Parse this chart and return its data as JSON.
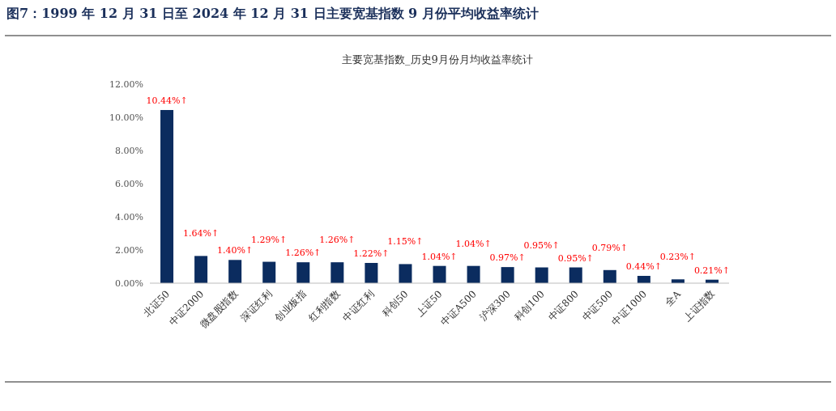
{
  "chart_data": {
    "type": "bar",
    "title": "图7：1999 年 12 月 31 日至 2024 年 12 月 31 日主要宽基指数 9 月份平均收益率统计",
    "subtitle": "主要宽基指数_历史9月份月均收益率统计",
    "categories": [
      "北证50",
      "中证2000",
      "微盘股指数",
      "深证红利",
      "创业板指",
      "红利指数",
      "中证红利",
      "科创50",
      "上证50",
      "中证A500",
      "沪深300",
      "科创100",
      "中证800",
      "中证500",
      "中证1000",
      "全A",
      "上证指数"
    ],
    "values": [
      10.44,
      1.64,
      1.4,
      1.29,
      1.26,
      1.26,
      1.22,
      1.15,
      1.04,
      1.04,
      0.97,
      0.95,
      0.95,
      0.79,
      0.44,
      0.23,
      0.21
    ],
    "value_labels": [
      "10.44%↑",
      "1.64%↑",
      "1.40%↑",
      "1.29%↑",
      "1.26%↑",
      "1.26%↑",
      "1.22%↑",
      "1.15%↑",
      "1.04%↑",
      "1.04%↑",
      "0.97%↑",
      "0.95%↑",
      "0.95%↑",
      "0.79%↑",
      "0.44%↑",
      "0.23%↑",
      "0.21%↑"
    ],
    "color": "#0b2c5f",
    "ylim": [
      0,
      12
    ],
    "yticks": [
      {
        "value": 0,
        "label": "0.00%"
      },
      {
        "value": 2,
        "label": "2.00%"
      },
      {
        "value": 4,
        "label": "4.00%"
      },
      {
        "value": 6,
        "label": "6.00%"
      },
      {
        "value": 8,
        "label": "8.00%"
      },
      {
        "value": 10,
        "label": "10.00%"
      },
      {
        "value": 12,
        "label": "12.00%"
      }
    ],
    "grid": false
  }
}
